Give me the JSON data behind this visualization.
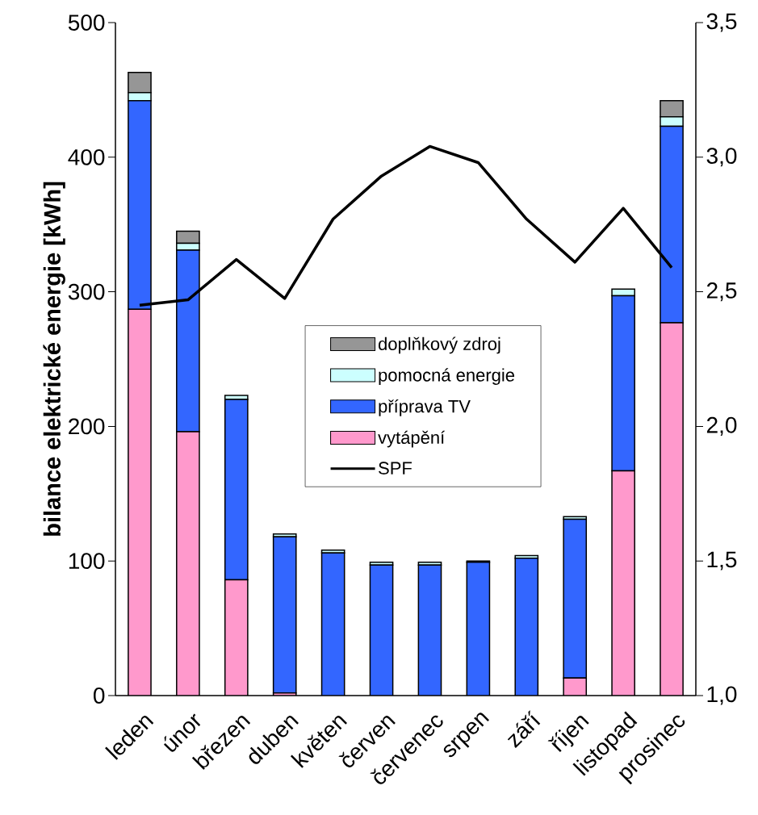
{
  "chart_data": {
    "type": "bar",
    "stacked": true,
    "ylabel": "bilance elektrické energie [kWh]",
    "categories": [
      "leden",
      "únor",
      "březen",
      "duben",
      "květen",
      "červen",
      "červenec",
      "srpen",
      "září",
      "říjen",
      "listopad",
      "prosinec"
    ],
    "series": [
      {
        "name": "vytápění",
        "type": "bar",
        "color": "#ff99cc",
        "values": [
          287,
          196,
          86,
          2,
          0,
          0,
          0,
          0,
          0,
          13,
          167,
          277
        ]
      },
      {
        "name": "příprava TV",
        "type": "bar",
        "color": "#3366ff",
        "values": [
          155,
          135,
          134,
          116,
          106,
          97,
          97,
          99,
          102,
          118,
          130,
          146
        ]
      },
      {
        "name": "pomocná energie",
        "type": "bar",
        "color": "#ccffff",
        "values": [
          6,
          5,
          3,
          2,
          2,
          2,
          2,
          1,
          2,
          2,
          5,
          7
        ]
      },
      {
        "name": "doplňkový zdroj",
        "type": "bar",
        "color": "#969696",
        "values": [
          15,
          9,
          0,
          0,
          0,
          0,
          0,
          0,
          0,
          0,
          0,
          12
        ]
      },
      {
        "name": "SPF",
        "type": "line",
        "axis": "y2",
        "color": "#000000",
        "values": [
          2.45,
          2.47,
          2.62,
          2.475,
          2.77,
          2.93,
          3.04,
          2.98,
          2.77,
          2.61,
          2.81,
          2.59
        ]
      }
    ],
    "ylim": [
      0,
      500
    ],
    "yticks": [
      0,
      100,
      200,
      300,
      400,
      500
    ],
    "y2lim": [
      1,
      3.5
    ],
    "y2ticks": [
      {
        "value": 1,
        "label": "1,0"
      },
      {
        "value": 1.5,
        "label": "1,5"
      },
      {
        "value": 2,
        "label": "2,0"
      },
      {
        "value": 2.5,
        "label": "2,5"
      },
      {
        "value": 3,
        "label": "3,0"
      },
      {
        "value": 3.5,
        "label": "3,5"
      }
    ],
    "legend": "center",
    "grid": false,
    "line_style": "solid"
  }
}
